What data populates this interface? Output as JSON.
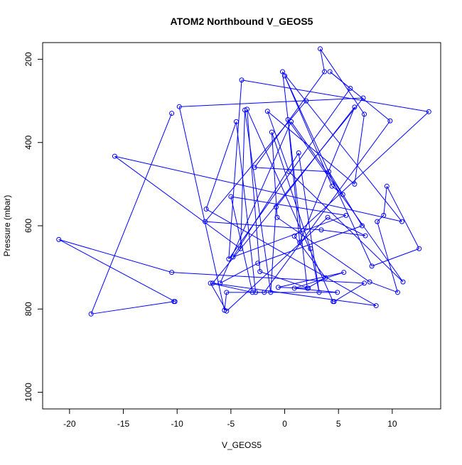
{
  "chart_data": {
    "type": "line",
    "title": "ATOM2 Northbound V_GEOS5",
    "xlabel": "V_GEOS5",
    "ylabel": "Pressure (mbar)",
    "xlim": [
      -22.5,
      14.5
    ],
    "ylim": [
      1040,
      160
    ],
    "y_reversed": true,
    "xticks": [
      -20,
      -15,
      -10,
      -5,
      0,
      5,
      10
    ],
    "yticks": [
      200,
      400,
      600,
      800,
      1000
    ],
    "grid": false,
    "color": "#0000ff",
    "markers": "open-circle",
    "x": [
      -10.5,
      -18.0,
      -10.3,
      -10.2,
      -21.0,
      -10.5,
      7.4,
      4.6,
      4.5,
      -3.5,
      -2.3,
      2.2,
      -0.6,
      5.5,
      0.9,
      4.9,
      -5.4,
      -5.6,
      -9.8,
      7.3,
      -6.7,
      8.5,
      -7.3,
      -4.5,
      -2.7,
      -1.9,
      9.8,
      4.2,
      6.1,
      -5.2,
      -4.0,
      13.4,
      0.9,
      3.8,
      2.1,
      -0.2,
      10.9,
      -15.8,
      -4.1,
      -3.7,
      -1.3,
      -0.8,
      6.5,
      1.4,
      0.3,
      11.0,
      0.4,
      -1.6,
      6.5,
      7.4,
      3.3,
      3.7,
      -2.8,
      4.1,
      7.2,
      -2.5,
      -6.0,
      0.6,
      5.4,
      4.4,
      0.0,
      8.1,
      12.5,
      9.5,
      9.2,
      8.6,
      10.5,
      7.9,
      -0.7,
      -1.2,
      2.4,
      3.2,
      1.3,
      -4.8,
      5.7,
      -5.0,
      -3.0,
      -6.9,
      -5.4,
      4.0,
      7.5,
      3.4,
      -7.4,
      2.0
    ],
    "y": [
      330,
      812,
      782,
      782,
      633,
      712,
      738,
      782,
      782,
      320,
      710,
      750,
      748,
      712,
      750,
      760,
      760,
      803,
      314,
      293,
      738,
      792,
      560,
      350,
      760,
      760,
      348,
      230,
      270,
      680,
      250,
      326,
      625,
      725,
      750,
      230,
      590,
      433,
      655,
      322,
      760,
      555,
      315,
      640,
      345,
      735,
      470,
      325,
      500,
      332,
      175,
      230,
      460,
      470,
      600,
      690,
      738,
      350,
      525,
      505,
      240,
      697,
      655,
      505,
      575,
      590,
      760,
      735,
      580,
      375,
      655,
      760,
      425,
      675,
      575,
      530,
      760,
      738,
      805,
      580,
      624,
      610,
      590,
      300
    ]
  }
}
